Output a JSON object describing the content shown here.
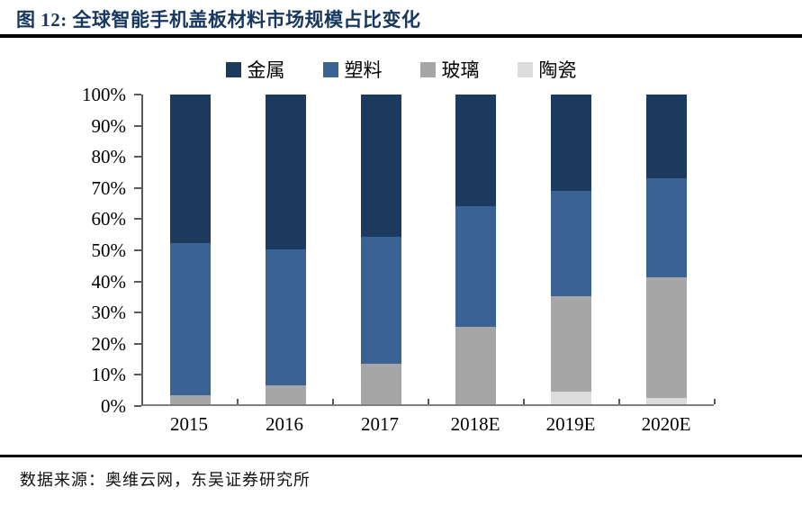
{
  "figure": {
    "title": "图 12: 全球智能手机盖板材料市场规模占比变化",
    "source": "数据来源：奥维云网，东吴证券研究所"
  },
  "chart_data": {
    "type": "bar",
    "stacked": true,
    "title": "全球智能手机盖板材料市场规模占比变化",
    "categories": [
      "2015",
      "2016",
      "2017",
      "2018E",
      "2019E",
      "2020E"
    ],
    "series": [
      {
        "key": "metal",
        "name": "金属",
        "color": "#1b3a5e",
        "values": [
          48,
          50,
          46,
          36,
          31,
          27
        ]
      },
      {
        "key": "plastic",
        "name": "塑料",
        "color": "#3a6294",
        "values": [
          49,
          44,
          41,
          39,
          34,
          32
        ]
      },
      {
        "key": "glass",
        "name": "玻璃",
        "color": "#a6a6a6",
        "values": [
          3,
          6,
          13,
          25,
          31,
          39
        ]
      },
      {
        "key": "ceramic",
        "name": "陶瓷",
        "color": "#dcdcdc",
        "values": [
          0,
          0,
          0,
          0,
          4,
          2
        ]
      }
    ],
    "unit": "%",
    "ylim": [
      0,
      100
    ],
    "y_ticks": [
      "0%",
      "10%",
      "20%",
      "30%",
      "40%",
      "50%",
      "60%",
      "70%",
      "80%",
      "90%",
      "100%"
    ],
    "legend_position": "top",
    "grid": false
  },
  "colors": {
    "title": "#17375e",
    "rule": "#000000",
    "axis": "#595959",
    "text": "#000000"
  }
}
